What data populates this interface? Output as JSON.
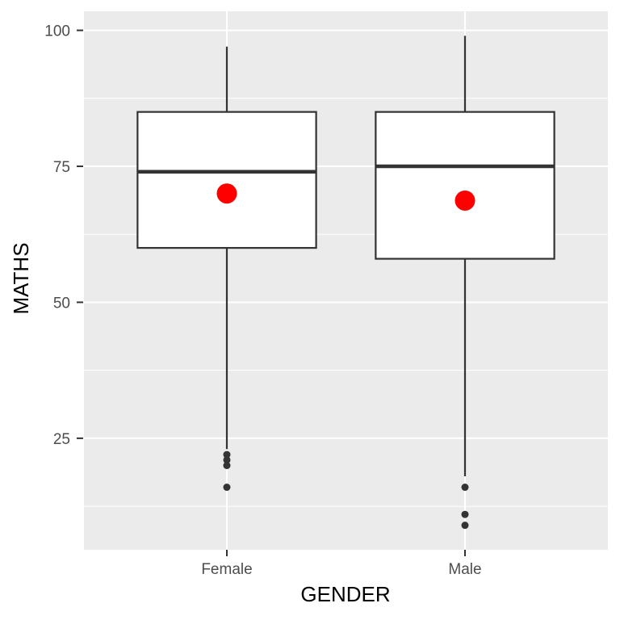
{
  "figure": {
    "background": "#FFFFFF"
  },
  "chart_data": {
    "type": "boxplot",
    "title": "",
    "xlabel": "GENDER",
    "ylabel": "MATHS",
    "categories": [
      "Female",
      "Male"
    ],
    "yticks": [
      25,
      50,
      75,
      100
    ],
    "yticks_minor": [
      12.5,
      37.5,
      62.5,
      87.5
    ],
    "ylim": [
      4.5,
      103.5
    ],
    "grid": {
      "major": true,
      "minor": true,
      "gridline_color": "#FFFFFF",
      "panel": "#EBEBEB"
    },
    "legend": "none",
    "series": [
      {
        "category": "Female",
        "whisker_low": 23,
        "q1": 60,
        "median": 74,
        "q3": 85,
        "whisker_high": 97,
        "mean": 70,
        "outliers": [
          22,
          21,
          20,
          16
        ]
      },
      {
        "category": "Male",
        "whisker_low": 18,
        "q1": 58,
        "median": 75,
        "q3": 85,
        "whisker_high": 99,
        "mean": 68.7,
        "outliers": [
          16,
          11,
          9
        ]
      }
    ],
    "colors": {
      "panel_background": "#EBEBEB",
      "gridline": "#FFFFFF",
      "box_border": "#333333",
      "box_fill": "#FFFFFF",
      "median": "#333333",
      "mean_point": "#FF0000",
      "outlier_point": "#333333",
      "axis_text": "#4D4D4D",
      "axis_title": "#000000",
      "tick_mark": "#333333"
    }
  }
}
